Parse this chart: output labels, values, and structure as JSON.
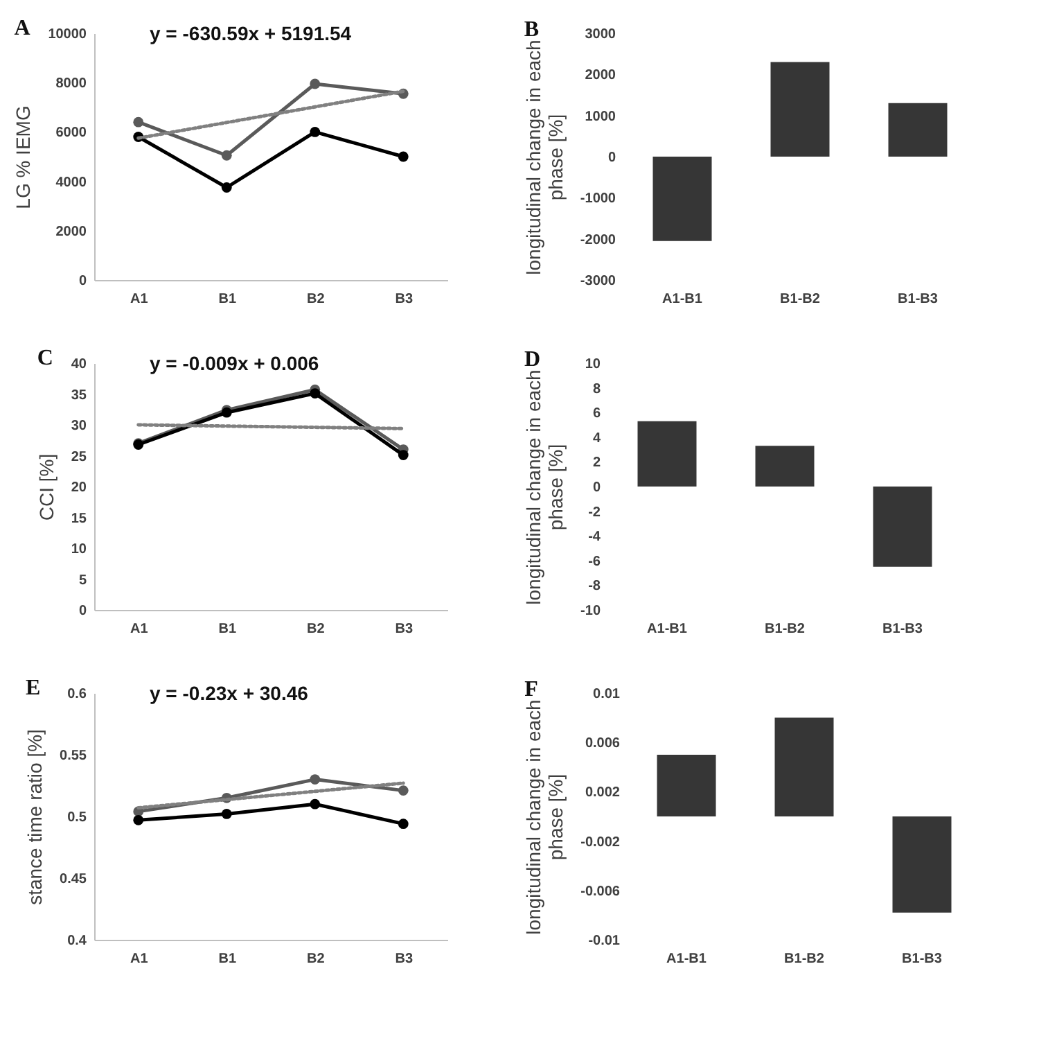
{
  "chart_data": [
    {
      "type": "line",
      "title": "A",
      "ylabel": "LG % IEMG",
      "categories": [
        "A1",
        "B1",
        "B2",
        "B3"
      ],
      "marker": "circle",
      "ylim": [
        0,
        10000
      ],
      "yticks": [
        0,
        2000,
        4000,
        6000,
        8000,
        10000
      ],
      "annotations": [
        "y = -630.59x + 5191.54"
      ],
      "series": [
        {
          "color": "#5a5a5a",
          "values": [
            6400,
            5050,
            7950,
            7550
          ]
        },
        {
          "color": "#000000",
          "values": [
            5800,
            3750,
            6000,
            5000
          ]
        },
        {
          "color": "#808080",
          "line_style": "dotted",
          "marker": "none",
          "x": [
            "A1",
            "B3"
          ],
          "values": [
            5750,
            7650
          ]
        }
      ]
    },
    {
      "type": "bar",
      "title": "B",
      "ylabel": "longitudinal change in each phase [%]",
      "categories": [
        "A1-B1",
        "B1-B2",
        "B1-B3"
      ],
      "color": "#363636",
      "values": [
        -2050,
        2300,
        1300
      ],
      "ylim": [
        -3000,
        3000
      ],
      "yticks": [
        -3000,
        -2000,
        -1000,
        0,
        1000,
        2000,
        3000
      ]
    },
    {
      "type": "line",
      "title": "C",
      "ylabel": "CCI [%]",
      "categories": [
        "A1",
        "B1",
        "B2",
        "B3"
      ],
      "marker": "circle",
      "ylim": [
        0,
        40
      ],
      "yticks": [
        0,
        5,
        10,
        15,
        20,
        25,
        30,
        35,
        40
      ],
      "annotations": [
        "y = -0.009x + 0.006"
      ],
      "series": [
        {
          "color": "#5a5a5a",
          "values": [
            27,
            32.4,
            35.7,
            26
          ]
        },
        {
          "color": "#000000",
          "values": [
            26.8,
            32,
            35.1,
            25.1
          ]
        },
        {
          "color": "#808080",
          "line_style": "dotted",
          "marker": "none",
          "x": [
            "A1",
            "B3"
          ],
          "values": [
            30,
            29.4
          ]
        }
      ]
    },
    {
      "type": "bar",
      "title": "D",
      "ylabel": "longitudinal change in each phase [%]",
      "categories": [
        "A1-B1",
        "B1-B2",
        "B1-B3"
      ],
      "color": "#363636",
      "values": [
        5.3,
        3.3,
        -6.5
      ],
      "ylim": [
        -10,
        10
      ],
      "yticks": [
        -10,
        -8,
        -6,
        -4,
        -2,
        0,
        2,
        4,
        6,
        8,
        10
      ]
    },
    {
      "type": "line",
      "title": "E",
      "ylabel": "stance time ratio [%]",
      "categories": [
        "A1",
        "B1",
        "B2",
        "B3"
      ],
      "marker": "circle",
      "ylim": [
        0.4,
        0.6
      ],
      "yticks": [
        0.4,
        0.45,
        0.5,
        0.55,
        0.6
      ],
      "annotations": [
        "y = -0.23x + 30.46"
      ],
      "series": [
        {
          "color": "#5a5a5a",
          "values": [
            0.504,
            0.515,
            0.53,
            0.521
          ]
        },
        {
          "color": "#000000",
          "values": [
            0.497,
            0.502,
            0.51,
            0.494
          ]
        },
        {
          "color": "#808080",
          "line_style": "dotted",
          "marker": "none",
          "x": [
            "A1",
            "B3"
          ],
          "values": [
            0.507,
            0.527
          ]
        }
      ]
    },
    {
      "type": "bar",
      "title": "F",
      "ylabel": "longitudinal change in each phase [%]",
      "categories": [
        "A1-B1",
        "B1-B2",
        "B1-B3"
      ],
      "color": "#363636",
      "values": [
        0.005,
        0.008,
        -0.0078
      ],
      "ylim": [
        -0.01,
        0.01
      ],
      "yticks": [
        -0.01,
        -0.006,
        -0.002,
        0.002,
        0.006,
        0.01
      ]
    }
  ]
}
